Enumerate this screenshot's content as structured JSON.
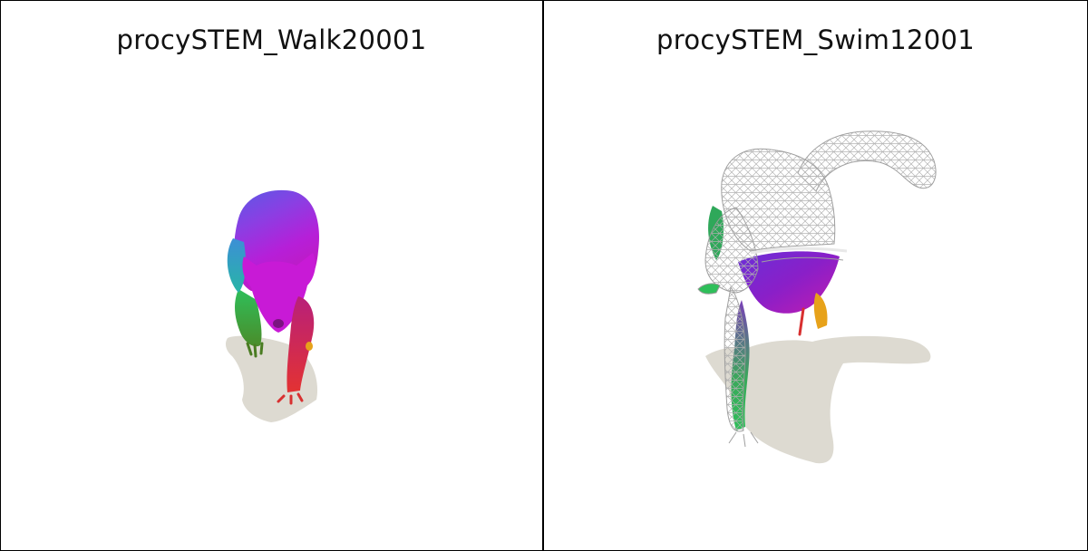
{
  "panels": [
    {
      "title": "procySTEM_Walk20001"
    },
    {
      "title": "procySTEM_Swim12001"
    }
  ],
  "colors": {
    "shadow": "#dddad1",
    "mesh_wire": "#bfbfbf",
    "magenta": "#c417d6",
    "purple": "#7a3fe0",
    "blue": "#3a64d8",
    "green": "#2fbf5a",
    "red": "#e03a3a",
    "orange": "#e7a21a"
  }
}
